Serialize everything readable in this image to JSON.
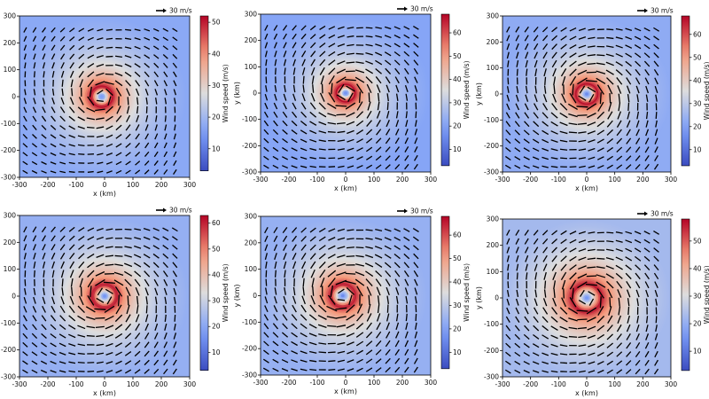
{
  "chart_data": [
    {
      "type": "heatmap",
      "subtype": "wind-field-with-vectors",
      "xlabel": "x (km)",
      "ylabel": "",
      "xlim": [
        -300,
        300
      ],
      "ylim": [
        -300,
        300
      ],
      "xticks": [
        -300,
        -200,
        -100,
        0,
        100,
        200,
        300
      ],
      "yticks": [
        -300,
        -200,
        -100,
        0,
        100,
        200,
        300
      ],
      "colorbar": {
        "label": "Wind speed (m/s)",
        "range": [
          3,
          52
        ],
        "ticks": [
          10,
          20,
          30,
          40,
          50
        ]
      },
      "vector_key": "30 m/s",
      "vortex_center_km": [
        -10,
        0
      ],
      "eye_radius_km": 12,
      "max_wind_radius_km": 40,
      "max_wind_ms": 52
    },
    {
      "type": "heatmap",
      "subtype": "wind-field-with-vectors",
      "xlabel": "x (km)",
      "ylabel": "y (km)",
      "xlim": [
        -300,
        300
      ],
      "ylim": [
        -300,
        300
      ],
      "xticks": [
        -300,
        -200,
        -100,
        0,
        100,
        200,
        300
      ],
      "yticks": [
        -300,
        -200,
        -100,
        0,
        100,
        200,
        300
      ],
      "colorbar": {
        "label": "Wind speed (m/s)",
        "range": [
          3,
          68
        ],
        "ticks": [
          10,
          20,
          30,
          40,
          50,
          60
        ]
      },
      "vector_key": "30 m/s",
      "vortex_center_km": [
        0,
        0
      ],
      "eye_radius_km": 12,
      "max_wind_radius_km": 35,
      "max_wind_ms": 68
    },
    {
      "type": "heatmap",
      "subtype": "wind-field-with-vectors",
      "xlabel": "x (km)",
      "ylabel": "y (km)",
      "xlim": [
        -300,
        300
      ],
      "ylim": [
        -300,
        300
      ],
      "xticks": [
        -300,
        -200,
        -100,
        0,
        100,
        200,
        300
      ],
      "yticks": [
        -300,
        -200,
        -100,
        0,
        100,
        200,
        300
      ],
      "colorbar": {
        "label": "Wind speed (m/s)",
        "range": [
          3,
          68
        ],
        "ticks": [
          10,
          20,
          30,
          40,
          50,
          60
        ]
      },
      "vector_key": "30 m/s",
      "vortex_center_km": [
        0,
        0
      ],
      "eye_radius_km": 15,
      "max_wind_radius_km": 40,
      "max_wind_ms": 68
    },
    {
      "type": "heatmap",
      "subtype": "wind-field-with-vectors",
      "xlabel": "x (km)",
      "ylabel": "",
      "xlim": [
        -300,
        300
      ],
      "ylim": [
        -300,
        300
      ],
      "xticks": [
        -300,
        -200,
        -100,
        0,
        100,
        200,
        300
      ],
      "yticks": [
        -300,
        -200,
        -100,
        0,
        100,
        200,
        300
      ],
      "colorbar": {
        "label": "Wind speed (m/s)",
        "range": [
          3,
          63
        ],
        "ticks": [
          10,
          20,
          30,
          40,
          50,
          60
        ]
      },
      "vector_key": "30 m/s",
      "vortex_center_km": [
        0,
        0
      ],
      "eye_radius_km": 12,
      "max_wind_radius_km": 45,
      "max_wind_ms": 62
    },
    {
      "type": "heatmap",
      "subtype": "wind-field-with-vectors",
      "xlabel": "x (km)",
      "ylabel": "y (km)",
      "xlim": [
        -300,
        300
      ],
      "ylim": [
        -300,
        300
      ],
      "xticks": [
        -300,
        -200,
        -100,
        0,
        100,
        200,
        300
      ],
      "yticks": [
        -300,
        -200,
        -100,
        0,
        100,
        200,
        300
      ],
      "colorbar": {
        "label": "Wind speed (m/s)",
        "range": [
          3,
          68
        ],
        "ticks": [
          10,
          20,
          30,
          40,
          50,
          60
        ]
      },
      "vector_key": "30 m/s",
      "vortex_center_km": [
        -10,
        0
      ],
      "eye_radius_km": 15,
      "max_wind_radius_km": 45,
      "max_wind_ms": 67
    },
    {
      "type": "heatmap",
      "subtype": "wind-field-with-vectors",
      "xlabel": "x (km)",
      "ylabel": "y (km)",
      "xlim": [
        -300,
        300
      ],
      "ylim": [
        -300,
        300
      ],
      "xticks": [
        -300,
        -200,
        -100,
        0,
        100,
        200,
        300
      ],
      "yticks": [
        -300,
        -200,
        -100,
        0,
        100,
        200,
        300
      ],
      "colorbar": {
        "label": "Wind speed (m/s)",
        "range": [
          3,
          58
        ],
        "ticks": [
          10,
          20,
          30,
          40,
          50
        ]
      },
      "vector_key": "30 m/s",
      "vortex_center_km": [
        0,
        0
      ],
      "eye_radius_km": 12,
      "max_wind_radius_km": 55,
      "max_wind_ms": 57
    }
  ]
}
